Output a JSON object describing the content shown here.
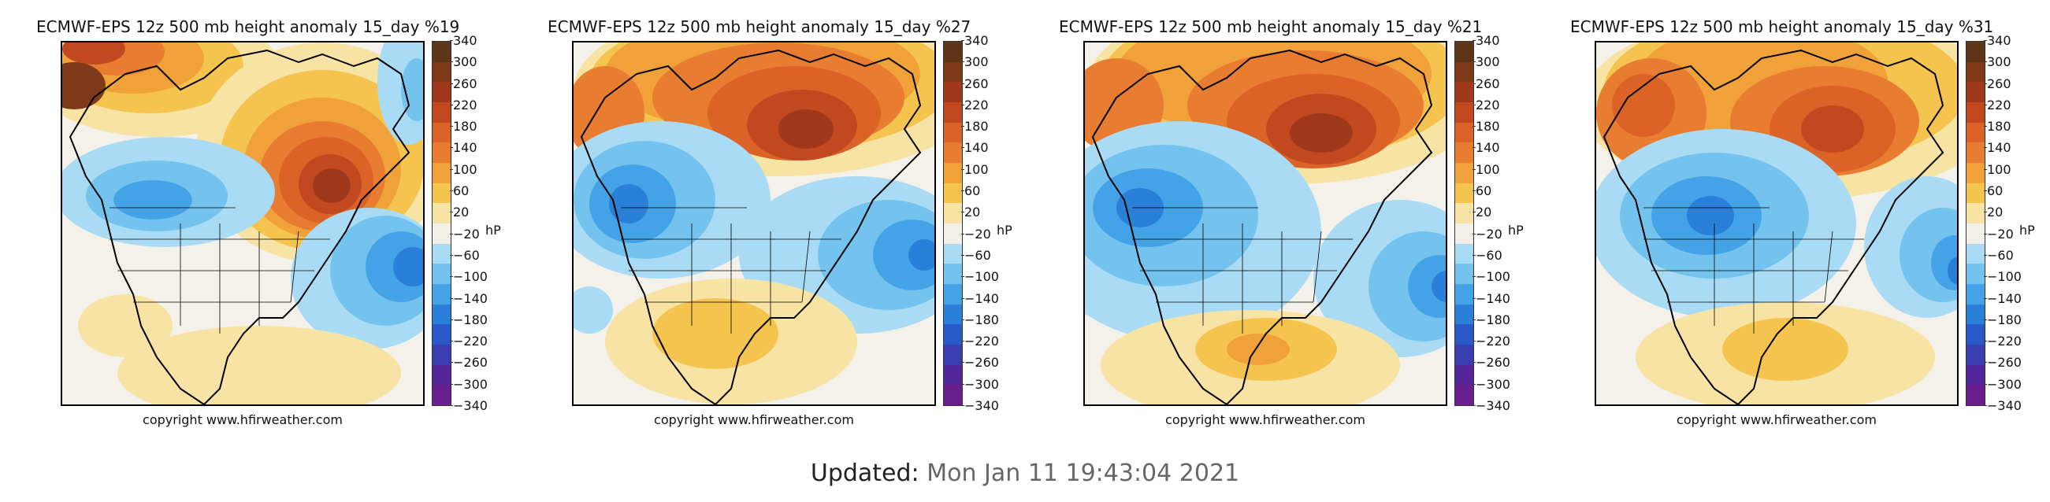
{
  "panels": [
    {
      "title": "ECMWF-EPS 12z 500 mb height anomaly 15_day %19",
      "copyright": "copyright www.hfirweather.com",
      "units": "hP"
    },
    {
      "title": "ECMWF-EPS 12z 500 mb height anomaly 15_day %27",
      "copyright": "copyright www.hfirweather.com",
      "units": "hP"
    },
    {
      "title": "ECMWF-EPS 12z 500 mb height anomaly 15_day %21",
      "copyright": "copyright www.hfirweather.com",
      "units": "hP"
    },
    {
      "title": "ECMWF-EPS 12z 500 mb height anomaly 15_day %31",
      "copyright": "copyright www.hfirweather.com",
      "units": "hP"
    }
  ],
  "colorbar": {
    "ticks": [
      "340",
      "300",
      "260",
      "220",
      "180",
      "140",
      "100",
      "60",
      "20",
      "−20",
      "−60",
      "−100",
      "−140",
      "−180",
      "−220",
      "−260",
      "−300",
      "−340"
    ],
    "colors": [
      "#5e3519",
      "#7e3a18",
      "#a0391b",
      "#c2481f",
      "#dc6328",
      "#e87d32",
      "#f0a13a",
      "#f5c44f",
      "#f7e3a3",
      "#f3f0ea",
      "#a9dcf4",
      "#74c3ee",
      "#44a3e6",
      "#2a7fd8",
      "#2a59c8",
      "#3a3eb0",
      "#55269a",
      "#6a1f8f"
    ]
  },
  "updated": {
    "label": "Updated:",
    "value": "Mon Jan 11 19:43:04 2021"
  }
}
